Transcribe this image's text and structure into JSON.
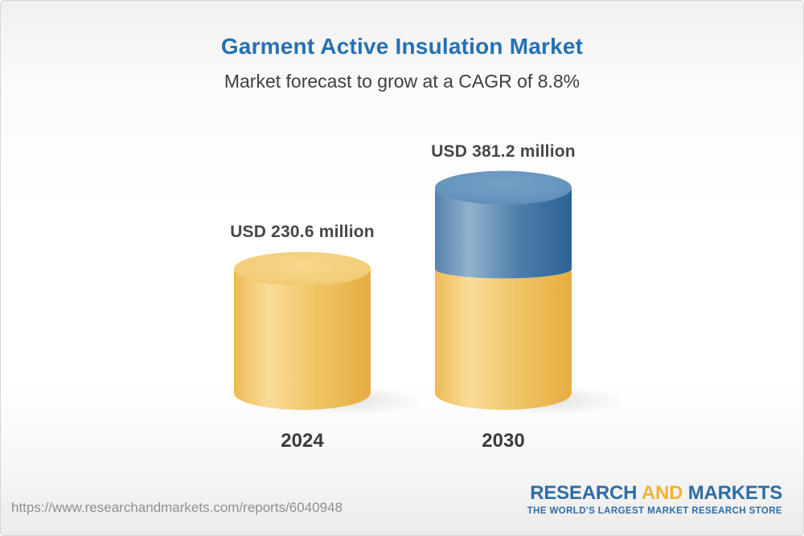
{
  "page": {
    "border_color": "#d6d6d6",
    "accent_blue": "#2471b3",
    "text_dark": "#3e3e3e",
    "url_gray": "#8f8f8f"
  },
  "header": {
    "title": "Garment Active Insulation Market",
    "subtitle": "Market forecast to grow at a CAGR of 8.8%"
  },
  "chart_data": {
    "type": "bar",
    "subtype": "3d-stacked-cylinder",
    "title": "Garment Active Insulation Market",
    "subtitle": "Market forecast to grow at a CAGR of 8.8%",
    "unit": "USD million",
    "cagr_percent": 8.8,
    "categories": [
      "2024",
      "2030"
    ],
    "totals": [
      230.6,
      381.2
    ],
    "value_labels": [
      "USD 230.6 million",
      "USD 381.2 million"
    ],
    "series": [
      {
        "name": "2024 base market size",
        "color_key": "base",
        "color": "#f2c566",
        "values": [
          230.6,
          230.6
        ]
      },
      {
        "name": "Incremental growth to 2030",
        "color_key": "growth",
        "color": "#4b7ca8",
        "values": [
          0,
          150.6
        ]
      }
    ],
    "legend": "none",
    "axes": "none (value labels above bars, year labels below bars)"
  },
  "footer": {
    "url": "https://www.researchandmarkets.com/reports/6040948",
    "logo": {
      "line1_part1": "RESEARCH",
      "line1_part2": "AND",
      "line1_part3": "MARKETS",
      "tagline": "THE WORLD'S LARGEST MARKET RESEARCH STORE",
      "blue": "#2e6da4",
      "gold": "#f2b234"
    }
  }
}
